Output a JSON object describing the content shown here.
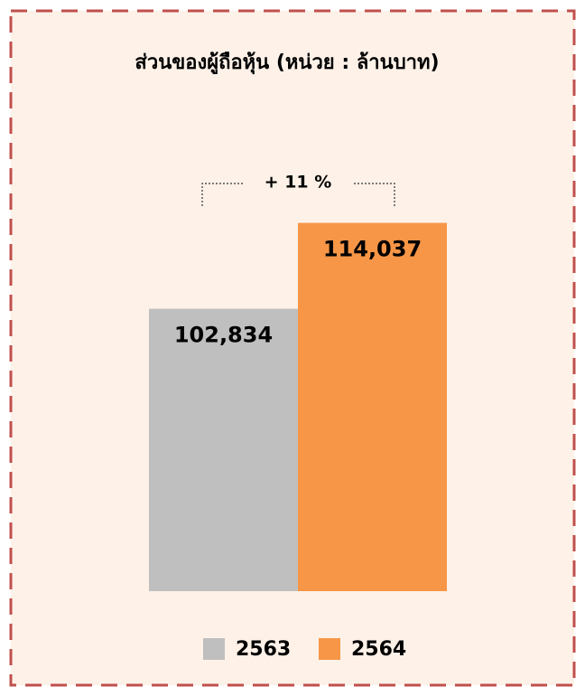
{
  "chart_data": {
    "type": "bar",
    "title": "ส่วนของผู้ถือหุ้น (หน่วย : ล้านบาท)",
    "categories": [
      "2563",
      "2564"
    ],
    "values": [
      102834,
      114037
    ],
    "value_labels": [
      "102,834",
      "114,037"
    ],
    "colors": [
      "#bfbfbf",
      "#f79646"
    ],
    "annotation": "+ 11 %",
    "ylim": [
      66000,
      120000
    ],
    "legend": "bottom"
  }
}
